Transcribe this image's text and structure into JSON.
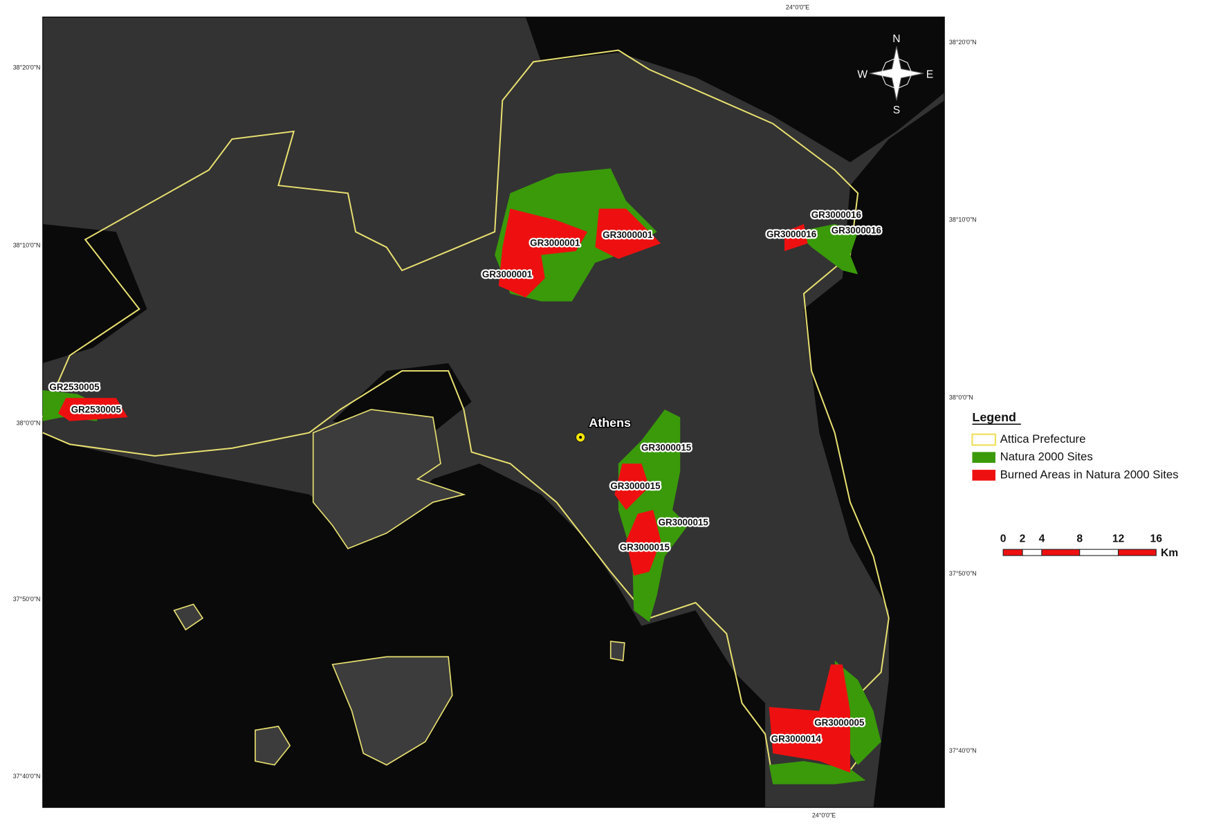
{
  "map": {
    "top_coordinate": "24°0'0\"E",
    "bottom_coordinate": "24°0'0\"E",
    "latitude_labels_left": [
      "38°20'0\"N",
      "38°10'0\"N",
      "38°0'0\"N",
      "37°50'0\"N",
      "37°40'0\"N"
    ],
    "latitude_labels_right": [
      "38°20'0\"N",
      "38°10'0\"N",
      "38°0'0\"N",
      "37°50'0\"N",
      "37°40'0\"N"
    ],
    "city": "Athens",
    "site_labels": [
      "GR3000001",
      "GR3000001",
      "GR3000001",
      "GR3000016",
      "GR3000016",
      "GR3000016",
      "GR2530005",
      "GR2530005",
      "GR3000015",
      "GR3000015",
      "GR3000015",
      "GR3000015",
      "GR3000005",
      "GR3000014"
    ],
    "compass": {
      "north": "N",
      "east": "E",
      "south": "S",
      "west": "W"
    }
  },
  "legend": {
    "title": "Legend",
    "items": [
      "Attica Prefecture",
      "Natura 2000 Sites",
      "Burned Areas in Natura 2000 Sites"
    ]
  },
  "scale_bar": {
    "ticks": [
      "0",
      "2",
      "4",
      "8",
      "12",
      "16"
    ],
    "unit": "Km"
  }
}
